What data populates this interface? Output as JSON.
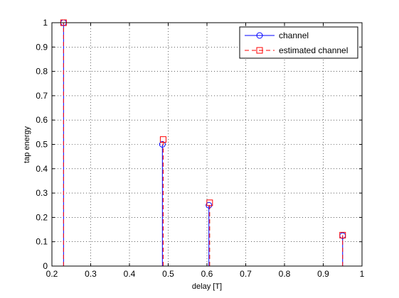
{
  "chart_data": {
    "type": "stem",
    "xlabel": "delay [T]",
    "ylabel": "tap energy",
    "xlim": [
      0.2,
      1.0
    ],
    "ylim": [
      0,
      1.0
    ],
    "xticks": [
      "0.2",
      "0.3",
      "0.4",
      "0.5",
      "0.6",
      "0.7",
      "0.8",
      "0.9",
      "1"
    ],
    "yticks": [
      "0",
      "0.1",
      "0.2",
      "0.3",
      "0.4",
      "0.5",
      "0.6",
      "0.7",
      "0.8",
      "0.9",
      "1"
    ],
    "grid": true,
    "legend_position": "top-right",
    "series": [
      {
        "name": "channel",
        "color": "#0000ff",
        "line_style": "solid",
        "marker": "circle",
        "x": [
          0.23,
          0.485,
          0.605,
          0.95
        ],
        "y": [
          1.0,
          0.5,
          0.25,
          0.125
        ]
      },
      {
        "name": "estimated channel",
        "color": "#ff0000",
        "line_style": "dashed",
        "marker": "square",
        "x": [
          0.23,
          0.487,
          0.607,
          0.95
        ],
        "y": [
          1.0,
          0.52,
          0.26,
          0.127
        ]
      }
    ]
  }
}
